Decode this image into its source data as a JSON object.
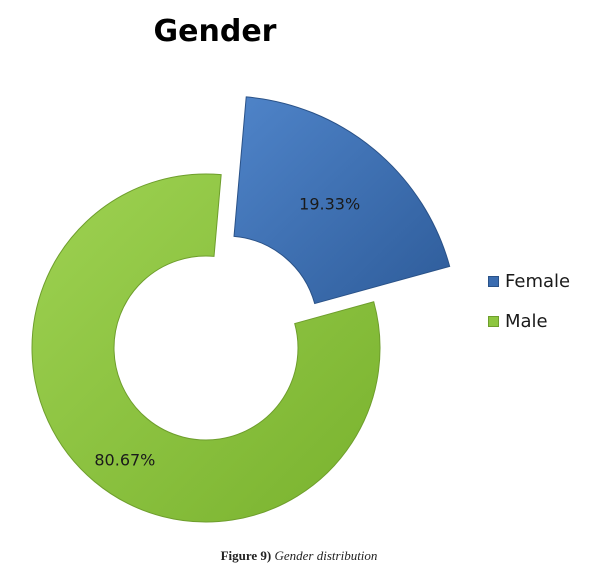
{
  "chart_data": {
    "type": "pie",
    "title": "Gender",
    "categories": [
      "Female",
      "Male"
    ],
    "values": [
      19.33,
      80.67
    ],
    "data_labels": [
      "19.33%",
      "80.67%"
    ],
    "colors": [
      "#3A6CB0",
      "#8DC63F"
    ],
    "legend_position": "right",
    "legend": [
      "Female",
      "Male"
    ]
  },
  "caption": {
    "label": "Figure 9)",
    "text": "Gender distribution"
  }
}
